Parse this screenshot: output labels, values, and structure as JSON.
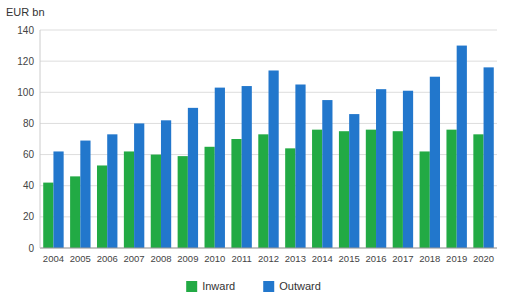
{
  "chart_data": {
    "type": "bar",
    "ylabel": "EUR bn",
    "categories": [
      "2004",
      "2005",
      "2006",
      "2007",
      "2008",
      "2009",
      "2010",
      "2011",
      "2012",
      "2013",
      "2014",
      "2015",
      "2016",
      "2017",
      "2018",
      "2019",
      "2020"
    ],
    "series": [
      {
        "name": "Inward",
        "color": "#22aa44",
        "values": [
          42,
          46,
          53,
          62,
          60,
          59,
          65,
          70,
          73,
          64,
          76,
          75,
          76,
          75,
          62,
          76,
          73
        ]
      },
      {
        "name": "Outward",
        "color": "#2277cc",
        "values": [
          62,
          69,
          73,
          80,
          82,
          90,
          103,
          104,
          114,
          105,
          95,
          86,
          102,
          101,
          110,
          130,
          116
        ]
      }
    ],
    "ylim": [
      0,
      140
    ],
    "yticks": [
      0,
      20,
      40,
      60,
      80,
      100,
      120,
      140
    ],
    "grid": true,
    "legend": "bottom"
  }
}
